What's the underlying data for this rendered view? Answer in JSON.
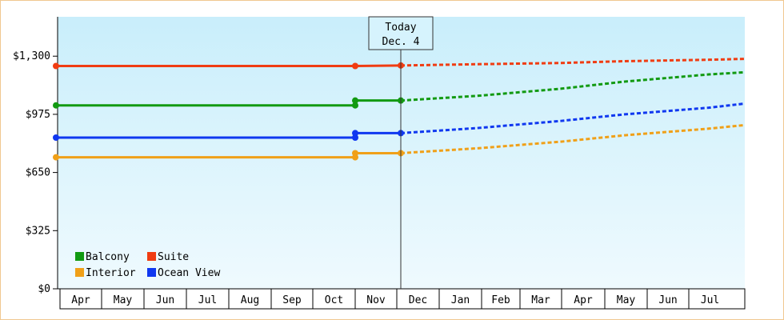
{
  "chart_data": {
    "type": "line",
    "title": "",
    "xlabel": "",
    "ylabel": "",
    "ylim": [
      0,
      1520
    ],
    "y_ticks": [
      {
        "value": 0,
        "label": "$0"
      },
      {
        "value": 325,
        "label": "$325"
      },
      {
        "value": 650,
        "label": "$650"
      },
      {
        "value": 975,
        "label": "$975"
      },
      {
        "value": 1300,
        "label": "$1,300"
      }
    ],
    "x_axis_months": [
      "Apr",
      "May",
      "Jun",
      "Jul",
      "Aug",
      "Sep",
      "Oct",
      "Nov",
      "Dec",
      "Jan",
      "Feb",
      "Mar",
      "Apr",
      "May",
      "Jun",
      "Jul"
    ],
    "today_marker": {
      "line1": "Today",
      "line2": "Dec. 4"
    },
    "grid": false,
    "legend_position": "bottom-left",
    "series": [
      {
        "name": "Balcony",
        "color": "#129a12",
        "historical": [
          [
            "Apr",
            1025
          ],
          [
            "Oct",
            1025
          ],
          [
            "Oct",
            1052
          ],
          [
            "Dec. 4",
            1052
          ]
        ],
        "forecast": [
          [
            "Dec. 4",
            1052
          ],
          [
            "Jan",
            1078
          ],
          [
            "Mar",
            1118
          ],
          [
            "May",
            1158
          ],
          [
            "Jul",
            1198
          ],
          [
            "Aug",
            1210
          ]
        ]
      },
      {
        "name": "Suite",
        "color": "#f03c12",
        "historical": [
          [
            "Apr",
            1245
          ],
          [
            "Oct",
            1245
          ],
          [
            "Dec. 4",
            1248
          ]
        ],
        "forecast": [
          [
            "Dec. 4",
            1248
          ],
          [
            "Jan",
            1255
          ],
          [
            "Mar",
            1262
          ],
          [
            "May",
            1272
          ],
          [
            "Jul",
            1280
          ],
          [
            "Aug",
            1285
          ]
        ]
      },
      {
        "name": "Interior",
        "color": "#f0a018",
        "historical": [
          [
            "Apr",
            735
          ],
          [
            "Oct",
            735
          ],
          [
            "Oct",
            758
          ],
          [
            "Dec. 4",
            758
          ]
        ],
        "forecast": [
          [
            "Dec. 4",
            758
          ],
          [
            "Jan",
            785
          ],
          [
            "Mar",
            822
          ],
          [
            "May",
            858
          ],
          [
            "Jul",
            895
          ],
          [
            "Aug",
            915
          ]
        ]
      },
      {
        "name": "Ocean View",
        "color": "#1038f0",
        "historical": [
          [
            "Apr",
            845
          ],
          [
            "Oct",
            845
          ],
          [
            "Oct",
            870
          ],
          [
            "Dec. 4",
            870
          ]
        ],
        "forecast": [
          [
            "Dec. 4",
            870
          ],
          [
            "Jan",
            898
          ],
          [
            "Mar",
            938
          ],
          [
            "May",
            975
          ],
          [
            "Jul",
            1012
          ],
          [
            "Aug",
            1035
          ]
        ]
      }
    ]
  }
}
